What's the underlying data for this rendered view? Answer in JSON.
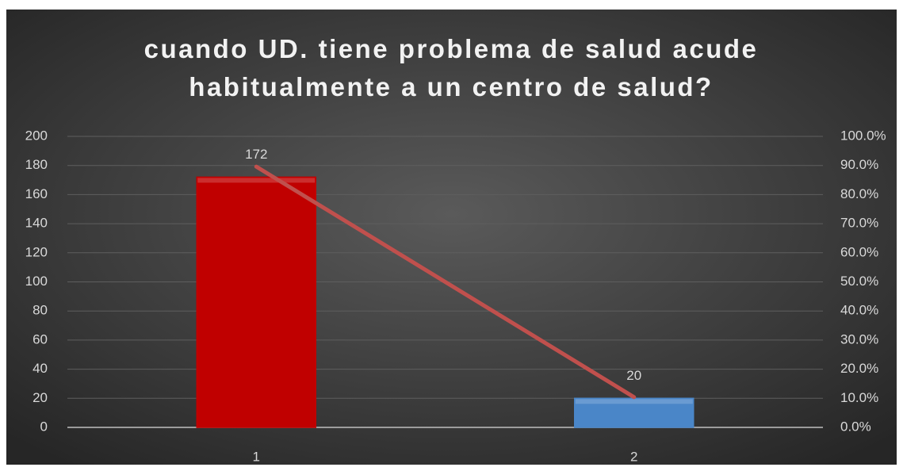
{
  "chart_data": {
    "type": "bar_line",
    "title": "cuando UD. tiene problema de salud acude habitualmente a un centro de salud?",
    "categories": [
      "1",
      "2"
    ],
    "series": [
      {
        "type": "bar",
        "colors": [
          "#c00000",
          "#4a86c8"
        ],
        "values": [
          172,
          20
        ]
      },
      {
        "type": "line",
        "axis": "y2",
        "color": "#c0504d",
        "values": [
          89.6,
          10.4
        ]
      }
    ],
    "ylim": [
      0,
      200
    ],
    "yticks": [
      0,
      20,
      40,
      60,
      80,
      100,
      120,
      140,
      160,
      180,
      200
    ],
    "y2lim": [
      0,
      100
    ],
    "y2ticks": [
      {
        "value": 0,
        "label": "0.0%"
      },
      {
        "value": 10,
        "label": "10.0%"
      },
      {
        "value": 20,
        "label": "20.0%"
      },
      {
        "value": 30,
        "label": "30.0%"
      },
      {
        "value": 40,
        "label": "40.0%"
      },
      {
        "value": 50,
        "label": "50.0%"
      },
      {
        "value": 60,
        "label": "60.0%"
      },
      {
        "value": 70,
        "label": "70.0%"
      },
      {
        "value": 80,
        "label": "80.0%"
      },
      {
        "value": 90,
        "label": "90.0%"
      },
      {
        "value": 100,
        "label": "100.0%"
      }
    ],
    "grid": true
  }
}
